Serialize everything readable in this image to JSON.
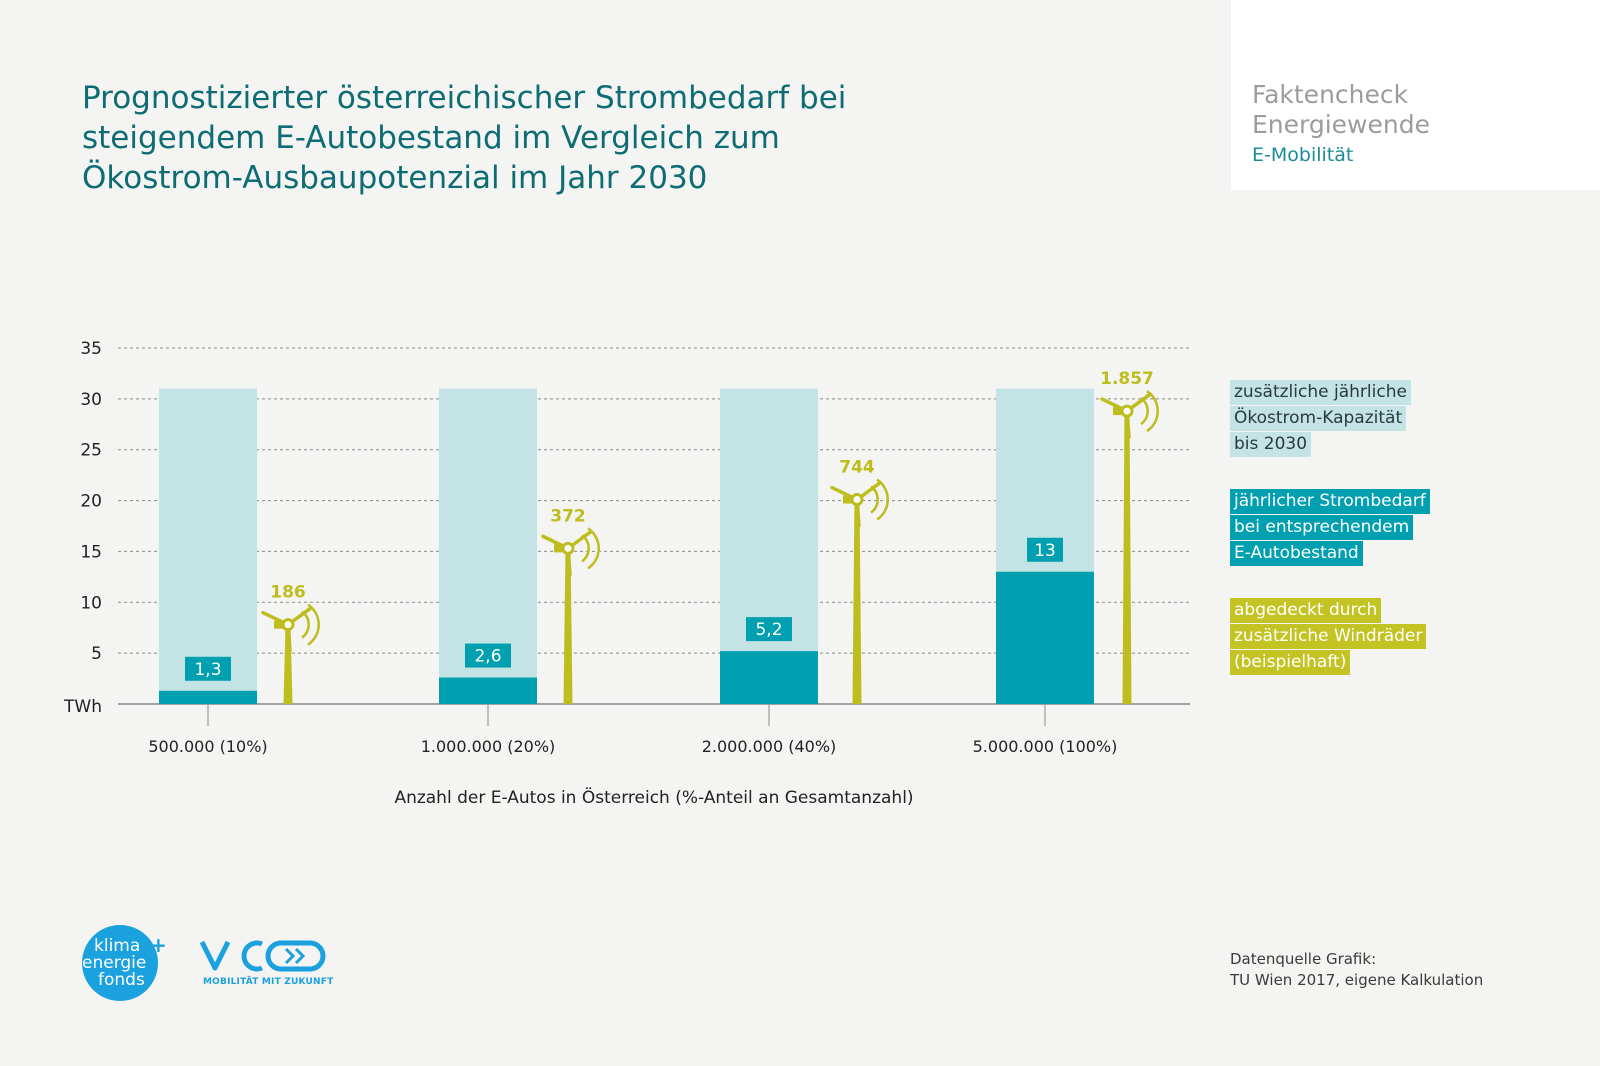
{
  "title": {
    "line1": "Prognostizierter österreichischer Strombedarf bei",
    "line2": "steigendem E-Autobestand im Vergleich zum",
    "line3": "Ökostrom-Ausbaupotenzial im Jahr 2030"
  },
  "badge": {
    "line1": "Faktencheck",
    "line2": "Energiewende",
    "sub": "E-Mobilität"
  },
  "colors": {
    "capacity": "#c3e3e5",
    "demand": "#00a0b0",
    "wind": "#bdbd1e",
    "title": "#0e6c74"
  },
  "chart_data": {
    "type": "bar",
    "ylabel": "TWh",
    "ylim": [
      0,
      35
    ],
    "yticks": [
      "35",
      "30",
      "25",
      "20",
      "15",
      "10",
      "5"
    ],
    "grid": true,
    "xlabel": "Anzahl der E-Autos in Österreich (%-Anteil an Gesamtanzahl)",
    "categories": [
      "500.000 (10%)",
      "1.000.000 (20%)",
      "2.000.000 (40%)",
      "5.000.000 (100%)"
    ],
    "series": [
      {
        "name": "zusätzliche jährliche Ökostrom-Kapazität bis 2030",
        "values": [
          31,
          31,
          31,
          31
        ]
      },
      {
        "name": "jährlicher Strombedarf bei entsprechendem E-Autobestand",
        "values": [
          1.3,
          2.6,
          5.2,
          13
        ],
        "labels": [
          "1,3",
          "2,6",
          "5,2",
          "13"
        ]
      },
      {
        "name": "abgedeckt durch zusätzliche Windräder (beispielhaft)",
        "values": [
          186,
          372,
          744,
          1857
        ],
        "labels": [
          "186",
          "372",
          "744",
          "1.857"
        ]
      }
    ]
  },
  "legend": {
    "capacity": [
      "zusätzliche jährliche",
      "Ökostrom-Kapazität",
      "bis 2030"
    ],
    "demand": [
      "jährlicher Strombedarf",
      "bei entsprechendem",
      "E-Autobestand"
    ],
    "wind": [
      "abgedeckt durch",
      "zusätzliche Windräder",
      "(beispielhaft)"
    ]
  },
  "source": {
    "line1": "Datenquelle Grafik:",
    "line2": "TU Wien 2017, eigene Kalkulation"
  },
  "logos": {
    "klima": [
      "klima",
      "energie",
      "fonds"
    ],
    "plus": "+",
    "vcoe": "VCÖ",
    "vcoe_tagline": "MOBILITÄT MIT ZUKUNFT"
  }
}
